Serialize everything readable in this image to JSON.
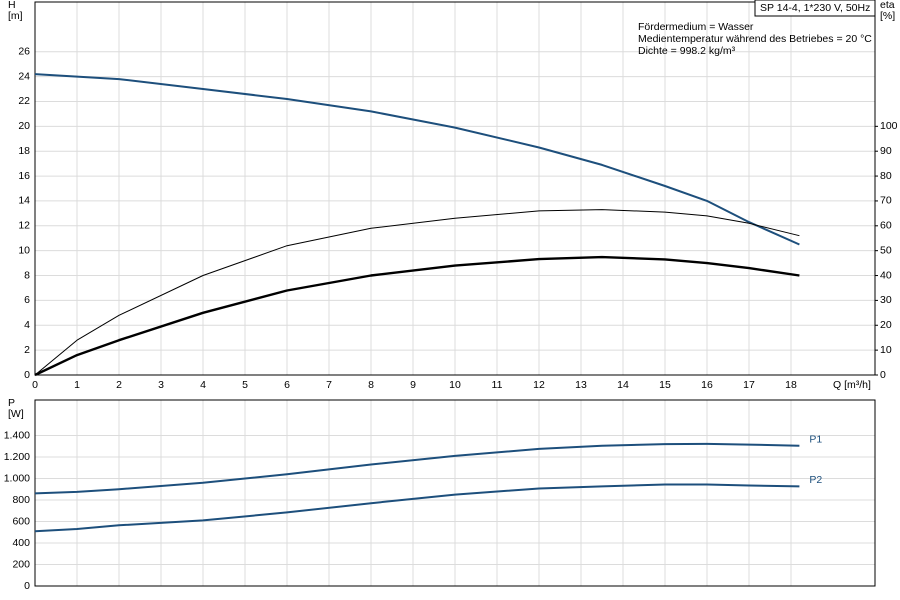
{
  "chart_data": [
    {
      "type": "line",
      "title": "SP 14-4, 1*230 V, 50Hz",
      "annotations": [
        "Fördermedium = Wasser",
        "Medientemperatur während des Betriebes = 20 °C",
        "Dichte = 998.2 kg/m³"
      ],
      "ylabel": "H",
      "ylabel_unit": "[m]",
      "y2label": "eta",
      "y2label_unit": "[%]",
      "xlabel": "Q [m³/h]",
      "xlim": [
        0,
        20
      ],
      "xticks": [
        0,
        1,
        2,
        3,
        4,
        5,
        6,
        7,
        8,
        9,
        10,
        11,
        12,
        13,
        14,
        15,
        16,
        17,
        18
      ],
      "ylim": [
        0,
        30
      ],
      "yticks": [
        0,
        2,
        4,
        6,
        8,
        10,
        12,
        14,
        16,
        18,
        20,
        22,
        24,
        26
      ],
      "y2lim": [
        0,
        150
      ],
      "y2ticks": [
        0,
        10,
        20,
        30,
        40,
        50,
        60,
        70,
        80,
        90,
        100
      ],
      "grid": true,
      "x": [
        0,
        1,
        2,
        4,
        6,
        8,
        10,
        12,
        13.5,
        15,
        16,
        17,
        18.2
      ],
      "series": [
        {
          "color": "#1d4f7c",
          "values": [
            24.2,
            24.0,
            23.8,
            23.0,
            22.2,
            21.2,
            19.9,
            18.3,
            16.9,
            15.2,
            14.0,
            12.3,
            10.5
          ]
        },
        {
          "color": "#000000",
          "axis": "y2",
          "values": [
            0,
            14,
            24,
            40,
            52,
            59,
            63,
            66,
            66.5,
            65.5,
            64,
            61,
            56
          ]
        },
        {
          "color": "#000000",
          "axis": "y2",
          "values": [
            0,
            8,
            14,
            25,
            34,
            40,
            44,
            46.6,
            47.4,
            46.5,
            45,
            43,
            40
          ]
        }
      ]
    },
    {
      "type": "line",
      "ylabel": "P",
      "ylabel_unit": "[W]",
      "xlim": [
        0,
        20
      ],
      "xticks": [
        0,
        1,
        2,
        3,
        4,
        5,
        6,
        7,
        8,
        9,
        10,
        11,
        12,
        13,
        14,
        15,
        16,
        17,
        18
      ],
      "ylim": [
        0,
        1730
      ],
      "yticks": [
        0,
        200,
        400,
        600,
        800,
        {
          "value": 1000,
          "label": "1.000"
        },
        {
          "value": 1200,
          "label": "1.200"
        },
        {
          "value": 1400,
          "label": "1.400"
        }
      ],
      "grid": true,
      "x": [
        0,
        1,
        2,
        4,
        6,
        8,
        10,
        12,
        13.5,
        15,
        16,
        17,
        18.2
      ],
      "series": [
        {
          "name": "P1",
          "color": "#1d4f7c",
          "values": [
            861,
            875,
            900,
            960,
            1040,
            1130,
            1210,
            1275,
            1305,
            1320,
            1322,
            1315,
            1305
          ]
        },
        {
          "name": "P2",
          "color": "#1d4f7c",
          "values": [
            509,
            530,
            565,
            610,
            685,
            770,
            850,
            907,
            926,
            944,
            944,
            935,
            926
          ]
        }
      ]
    }
  ]
}
